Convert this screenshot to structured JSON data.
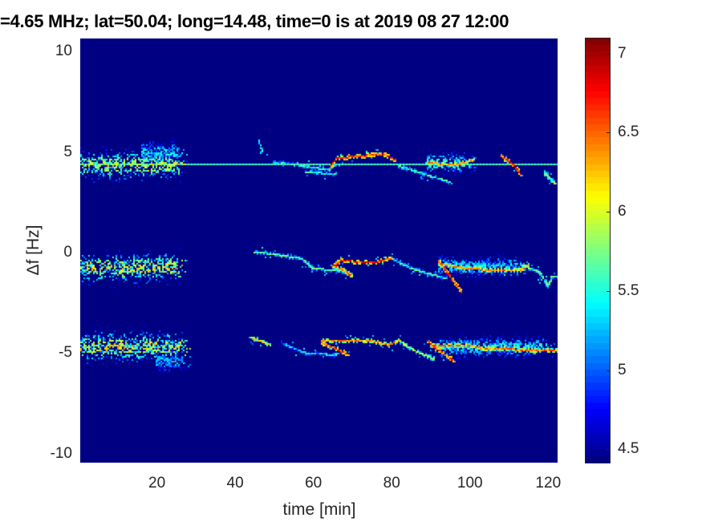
{
  "chart_data": {
    "type": "heatmap",
    "title": "=4.65 MHz;  lat=50.04; long=14.48, time=0 is at 2019 08 27 12:00",
    "xlabel": "time [min]",
    "ylabel": "Δf [Hz]",
    "xlim": [
      0.4,
      122.4
    ],
    "ylim": [
      -10.45,
      10.65
    ],
    "xticks": [
      20,
      40,
      60,
      80,
      100,
      120
    ],
    "yticks": [
      10,
      5,
      0,
      -5,
      -10
    ],
    "xtick_labels": [
      "20",
      "40",
      "60",
      "80",
      "100",
      "120"
    ],
    "ytick_labels": [
      "10",
      "5",
      "0",
      "-5",
      "-10"
    ],
    "colormap": "jet",
    "clim": [
      4.41,
      7.1
    ],
    "colorbar_ticks": [
      7,
      6.5,
      6,
      5.5,
      5,
      4.5
    ],
    "colorbar_tick_labels": [
      "7",
      "6.5",
      "6",
      "5.5",
      "5",
      "4.5"
    ],
    "background_value": 4.42,
    "horizontal_lines": [
      {
        "f": 4.38,
        "t": [
          0,
          122.4
        ],
        "value": 5.6
      }
    ],
    "blobs": [
      {
        "t": [
          0.4,
          28
        ],
        "f": 4.35,
        "spread": 0.35,
        "value": 6.0
      },
      {
        "t": [
          16,
          28
        ],
        "f": 5.0,
        "spread": 0.25,
        "value": 5.4
      },
      {
        "t": [
          0.4,
          28
        ],
        "f": -0.75,
        "spread": 0.35,
        "value": 6.1
      },
      {
        "t": [
          0.4,
          29
        ],
        "f": -4.7,
        "spread": 0.35,
        "value": 6.1
      },
      {
        "t": [
          20,
          29
        ],
        "f": -5.4,
        "spread": 0.25,
        "value": 5.3
      },
      {
        "t": [
          89,
          102
        ],
        "f": 4.45,
        "spread": 0.25,
        "value": 5.6
      },
      {
        "t": [
          92,
          115
        ],
        "f": -0.7,
        "spread": 0.25,
        "value": 5.4
      },
      {
        "t": [
          92,
          122
        ],
        "f": -4.7,
        "spread": 0.25,
        "value": 5.5
      }
    ],
    "traces": [
      {
        "value": 5.3,
        "points": [
          [
            46,
            5.6
          ],
          [
            47,
            5.0
          ]
        ]
      },
      {
        "value": 5.4,
        "points": [
          [
            50,
            4.5
          ],
          [
            58,
            4.3
          ],
          [
            64,
            4.1
          ],
          [
            66,
            4.4
          ]
        ]
      },
      {
        "value": 6.6,
        "points": [
          [
            64,
            4.2
          ],
          [
            66,
            4.7
          ],
          [
            72,
            4.8
          ],
          [
            78,
            4.9
          ],
          [
            81,
            4.6
          ]
        ]
      },
      {
        "value": 5.5,
        "points": [
          [
            58,
            4.0
          ],
          [
            66,
            3.9
          ]
        ]
      },
      {
        "value": 5.5,
        "points": [
          [
            82,
            4.3
          ],
          [
            90,
            3.8
          ],
          [
            95,
            3.5
          ]
        ]
      },
      {
        "value": 6.3,
        "points": [
          [
            89,
            4.5
          ],
          [
            93,
            4.4
          ],
          [
            97,
            4.4
          ],
          [
            101,
            4.6
          ]
        ]
      },
      {
        "value": 6.7,
        "points": [
          [
            108,
            4.8
          ],
          [
            111,
            4.4
          ],
          [
            113,
            3.9
          ]
        ]
      },
      {
        "value": 5.8,
        "points": [
          [
            119,
            4.0
          ],
          [
            122,
            3.4
          ]
        ]
      },
      {
        "value": 5.6,
        "points": [
          [
            45,
            0.0
          ],
          [
            49,
            -0.05
          ],
          [
            57,
            -0.3
          ],
          [
            60,
            -0.8
          ],
          [
            67,
            -0.9
          ],
          [
            70,
            -1.1
          ]
        ]
      },
      {
        "value": 6.6,
        "points": [
          [
            65,
            -0.7
          ],
          [
            67,
            -0.4
          ],
          [
            75,
            -0.5
          ],
          [
            80,
            -0.3
          ]
        ]
      },
      {
        "value": 6.4,
        "points": [
          [
            65,
            -0.6
          ],
          [
            68,
            -0.9
          ],
          [
            70,
            -1.2
          ]
        ]
      },
      {
        "value": 5.5,
        "points": [
          [
            80,
            -0.3
          ],
          [
            85,
            -0.8
          ],
          [
            94,
            -1.3
          ]
        ]
      },
      {
        "value": 6.6,
        "points": [
          [
            92,
            -0.4
          ],
          [
            95,
            -1.2
          ],
          [
            98,
            -2.0
          ]
        ]
      },
      {
        "value": 6.3,
        "points": [
          [
            92,
            -0.6
          ],
          [
            100,
            -0.8
          ],
          [
            108,
            -0.9
          ],
          [
            113,
            -0.9
          ],
          [
            115,
            -0.6
          ]
        ]
      },
      {
        "value": 5.6,
        "points": [
          [
            113,
            -0.6
          ],
          [
            118,
            -1.0
          ],
          [
            120,
            -1.7
          ],
          [
            121,
            -1.2
          ],
          [
            122.4,
            -1.2
          ]
        ]
      },
      {
        "value": 6.0,
        "points": [
          [
            44,
            -4.2
          ],
          [
            49,
            -4.6
          ]
        ]
      },
      {
        "value": 5.3,
        "points": [
          [
            52,
            -4.5
          ],
          [
            58,
            -5.0
          ],
          [
            66,
            -5.1
          ]
        ]
      },
      {
        "value": 6.6,
        "points": [
          [
            62,
            -4.5
          ],
          [
            66,
            -4.8
          ],
          [
            69,
            -5.1
          ]
        ]
      },
      {
        "value": 6.3,
        "points": [
          [
            62,
            -4.4
          ],
          [
            70,
            -4.4
          ],
          [
            75,
            -4.4
          ],
          [
            79,
            -4.6
          ],
          [
            82,
            -4.4
          ]
        ]
      },
      {
        "value": 5.8,
        "points": [
          [
            82,
            -4.4
          ],
          [
            86,
            -4.9
          ],
          [
            91,
            -5.3
          ]
        ]
      },
      {
        "value": 6.6,
        "points": [
          [
            89,
            -4.4
          ],
          [
            93,
            -5.0
          ],
          [
            96,
            -5.4
          ]
        ]
      },
      {
        "value": 6.4,
        "points": [
          [
            91,
            -4.6
          ],
          [
            99,
            -4.6
          ],
          [
            104,
            -4.8
          ],
          [
            110,
            -4.8
          ],
          [
            116,
            -4.9
          ],
          [
            122.4,
            -4.9
          ]
        ]
      }
    ]
  }
}
